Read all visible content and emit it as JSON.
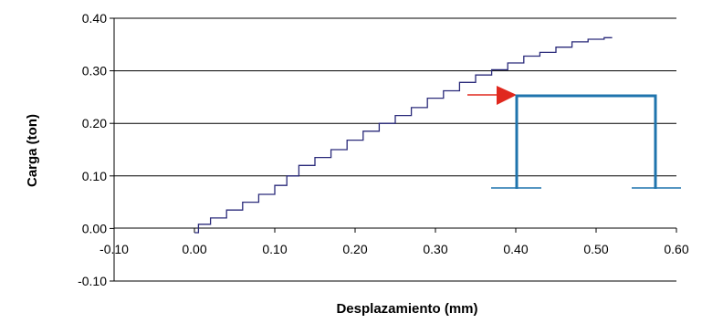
{
  "chart_data": {
    "type": "line",
    "title": "",
    "xlabel": "Desplazamiento (mm)",
    "ylabel": "Carga (ton)",
    "xlim": [
      -0.1,
      0.6
    ],
    "ylim": [
      -0.1,
      0.4
    ],
    "x_ticks": [
      -0.1,
      0.0,
      0.1,
      0.2,
      0.3,
      0.4,
      0.5,
      0.6
    ],
    "x_tick_labels": [
      "-0.10",
      "0.00",
      "0.10",
      "0.20",
      "0.30",
      "0.40",
      "0.50",
      "0.60"
    ],
    "y_ticks": [
      -0.1,
      0.0,
      0.1,
      0.2,
      0.3,
      0.4
    ],
    "y_tick_labels": [
      "-0.10",
      "0.00",
      "0.10",
      "0.20",
      "0.30",
      "0.40"
    ],
    "grid": "horizontal",
    "legend": "none",
    "series": [
      {
        "color": "#2a2a7a",
        "x": [
          0.0,
          0.005,
          0.02,
          0.04,
          0.06,
          0.08,
          0.1,
          0.115,
          0.13,
          0.15,
          0.17,
          0.19,
          0.21,
          0.23,
          0.25,
          0.27,
          0.29,
          0.31,
          0.33,
          0.35,
          0.37,
          0.39,
          0.41,
          0.43,
          0.45,
          0.47,
          0.49,
          0.51,
          0.52
        ],
        "y": [
          -0.008,
          0.008,
          0.02,
          0.035,
          0.05,
          0.065,
          0.082,
          0.1,
          0.12,
          0.135,
          0.15,
          0.168,
          0.185,
          0.2,
          0.215,
          0.23,
          0.248,
          0.262,
          0.278,
          0.292,
          0.302,
          0.315,
          0.328,
          0.335,
          0.345,
          0.355,
          0.36,
          0.363,
          0.363
        ]
      }
    ],
    "annotations": {
      "arrow_color": "#e0281e",
      "frame_color": "#1f74ad"
    }
  }
}
